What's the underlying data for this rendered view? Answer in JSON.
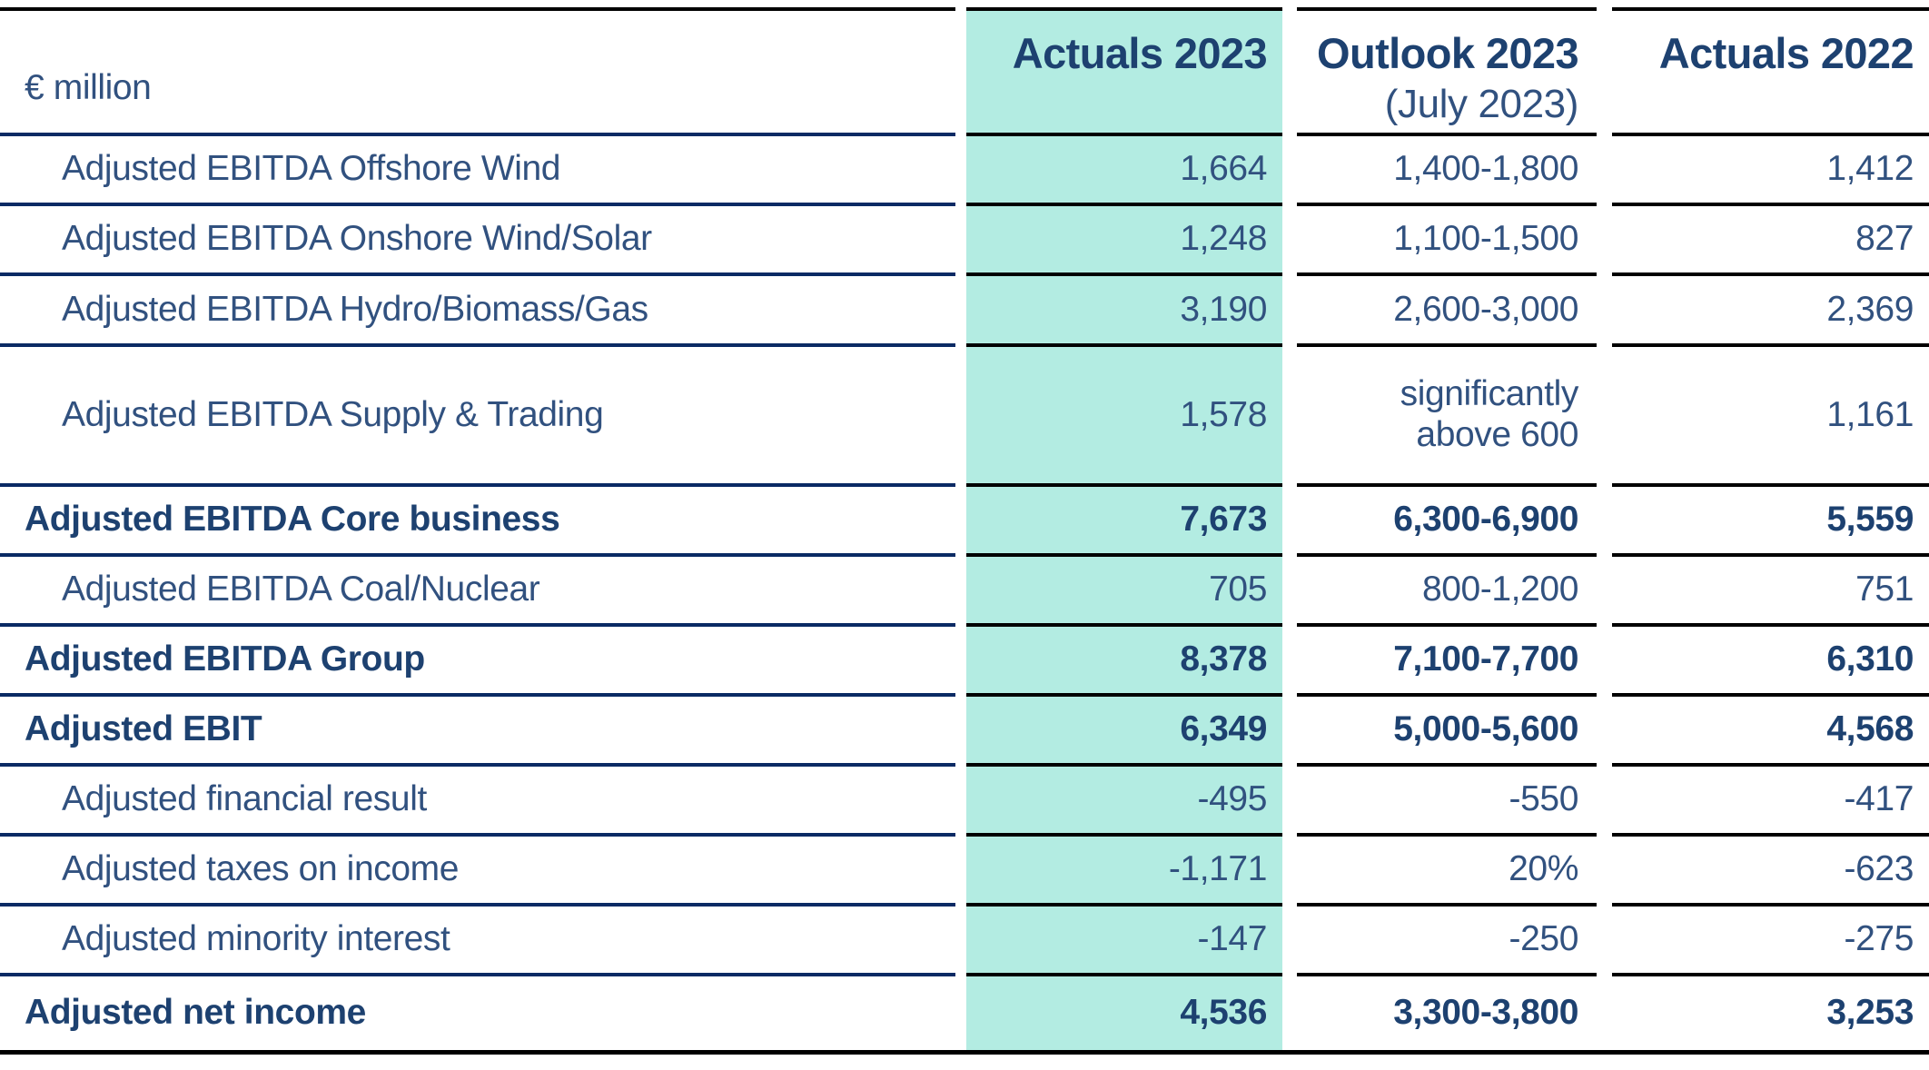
{
  "unit_label": "€ million",
  "columns": {
    "actuals_2023": {
      "label": "Actuals 2023",
      "highlight_color": "#B3ECE2"
    },
    "outlook_2023": {
      "label": "Outlook 2023",
      "sublabel": "(July 2023)"
    },
    "actuals_2022": {
      "label": "Actuals 2022"
    }
  },
  "colors": {
    "text_regular": "#31517F",
    "text_bold": "#1D4170",
    "separator_navy": "#0A2A64",
    "separator_black": "#000000",
    "highlight_teal": "#B3ECE2",
    "background": "#FFFFFF"
  },
  "rows": [
    {
      "label": "Adjusted EBITDA Offshore Wind",
      "actuals_2023": "1,664",
      "outlook_2023": "1,400-1,800",
      "actuals_2022": "1,412"
    },
    {
      "label": "Adjusted EBITDA Onshore Wind/Solar",
      "actuals_2023": "1,248",
      "outlook_2023": "1,100-1,500",
      "actuals_2022": "827"
    },
    {
      "label": "Adjusted EBITDA Hydro/Biomass/Gas",
      "actuals_2023": "3,190",
      "outlook_2023": "2,600-3,000",
      "actuals_2022": "2,369"
    },
    {
      "label": "Adjusted EBITDA Supply & Trading",
      "actuals_2023": "1,578",
      "outlook_2023": "significantly\nabove 600",
      "actuals_2022": "1,161"
    },
    {
      "label": "Adjusted EBITDA Core business",
      "actuals_2023": "7,673",
      "outlook_2023": "6,300-6,900",
      "actuals_2022": "5,559"
    },
    {
      "label": "Adjusted EBITDA Coal/Nuclear",
      "actuals_2023": "705",
      "outlook_2023": "800-1,200",
      "actuals_2022": "751"
    },
    {
      "label": "Adjusted EBITDA Group",
      "actuals_2023": "8,378",
      "outlook_2023": "7,100-7,700",
      "actuals_2022": "6,310"
    },
    {
      "label": "Adjusted EBIT",
      "actuals_2023": "6,349",
      "outlook_2023": "5,000-5,600",
      "actuals_2022": "4,568"
    },
    {
      "label": "Adjusted financial result",
      "actuals_2023": "-495",
      "outlook_2023": "-550",
      "actuals_2022": "-417"
    },
    {
      "label": "Adjusted taxes on income",
      "actuals_2023": "-1,171",
      "outlook_2023": "20%",
      "actuals_2022": "-623"
    },
    {
      "label": "Adjusted minority interest",
      "actuals_2023": "-147",
      "outlook_2023": "-250",
      "actuals_2022": "-275"
    },
    {
      "label": "Adjusted net income",
      "actuals_2023": "4,536",
      "outlook_2023": "3,300-3,800",
      "actuals_2022": "3,253"
    }
  ]
}
